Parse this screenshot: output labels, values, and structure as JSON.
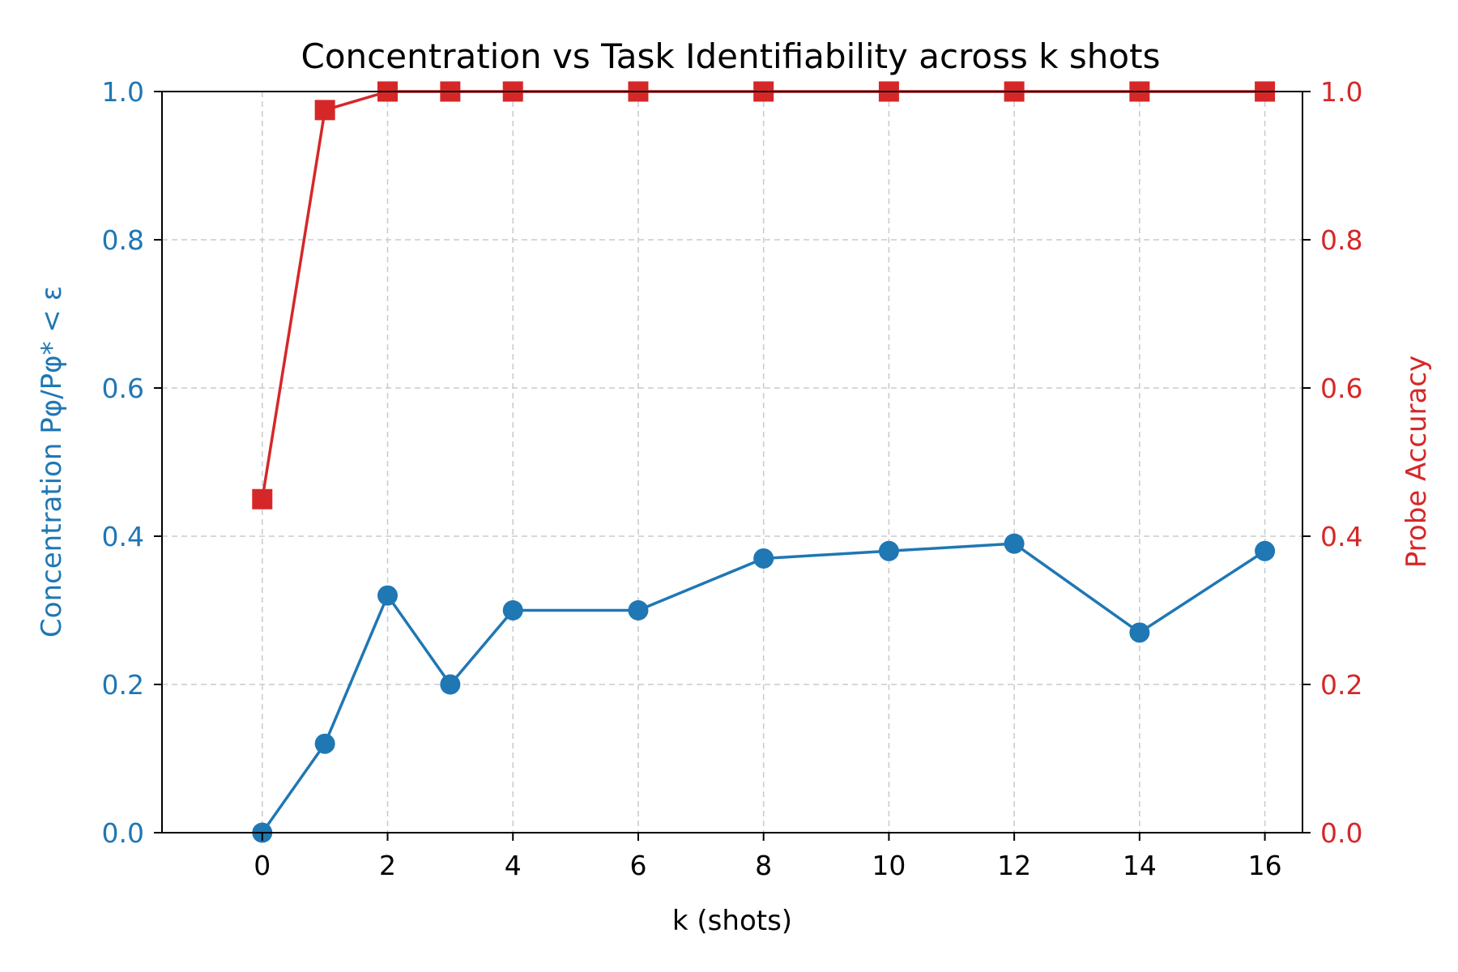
{
  "chart_data": {
    "type": "line",
    "title": "Concentration vs Task Identifiability across k shots",
    "xlabel": "k (shots)",
    "ylabel_left": "Concentration  Pφ/Pφ* < ε",
    "ylabel_right": "Probe Accuracy",
    "x": [
      0,
      1,
      2,
      3,
      4,
      6,
      8,
      10,
      12,
      14,
      16
    ],
    "xticks": [
      0,
      2,
      4,
      6,
      8,
      10,
      12,
      14,
      16
    ],
    "xlim": [
      -1.6,
      16.6
    ],
    "ylim_left": [
      0,
      1
    ],
    "ylim_right": [
      0,
      1
    ],
    "yticks": [
      0.0,
      0.2,
      0.4,
      0.6,
      0.8,
      1.0
    ],
    "grid": true,
    "series": [
      {
        "axis": "left",
        "color": "#1f77b4",
        "marker": "circle",
        "values": [
          0.0,
          0.12,
          0.32,
          0.2,
          0.3,
          0.3,
          0.37,
          0.38,
          0.39,
          0.27,
          0.38
        ]
      },
      {
        "axis": "right",
        "color": "#d62728",
        "marker": "square",
        "values": [
          0.45,
          0.975,
          1.0,
          1.0,
          1.0,
          1.0,
          1.0,
          1.0,
          1.0,
          1.0,
          1.0
        ]
      }
    ]
  }
}
